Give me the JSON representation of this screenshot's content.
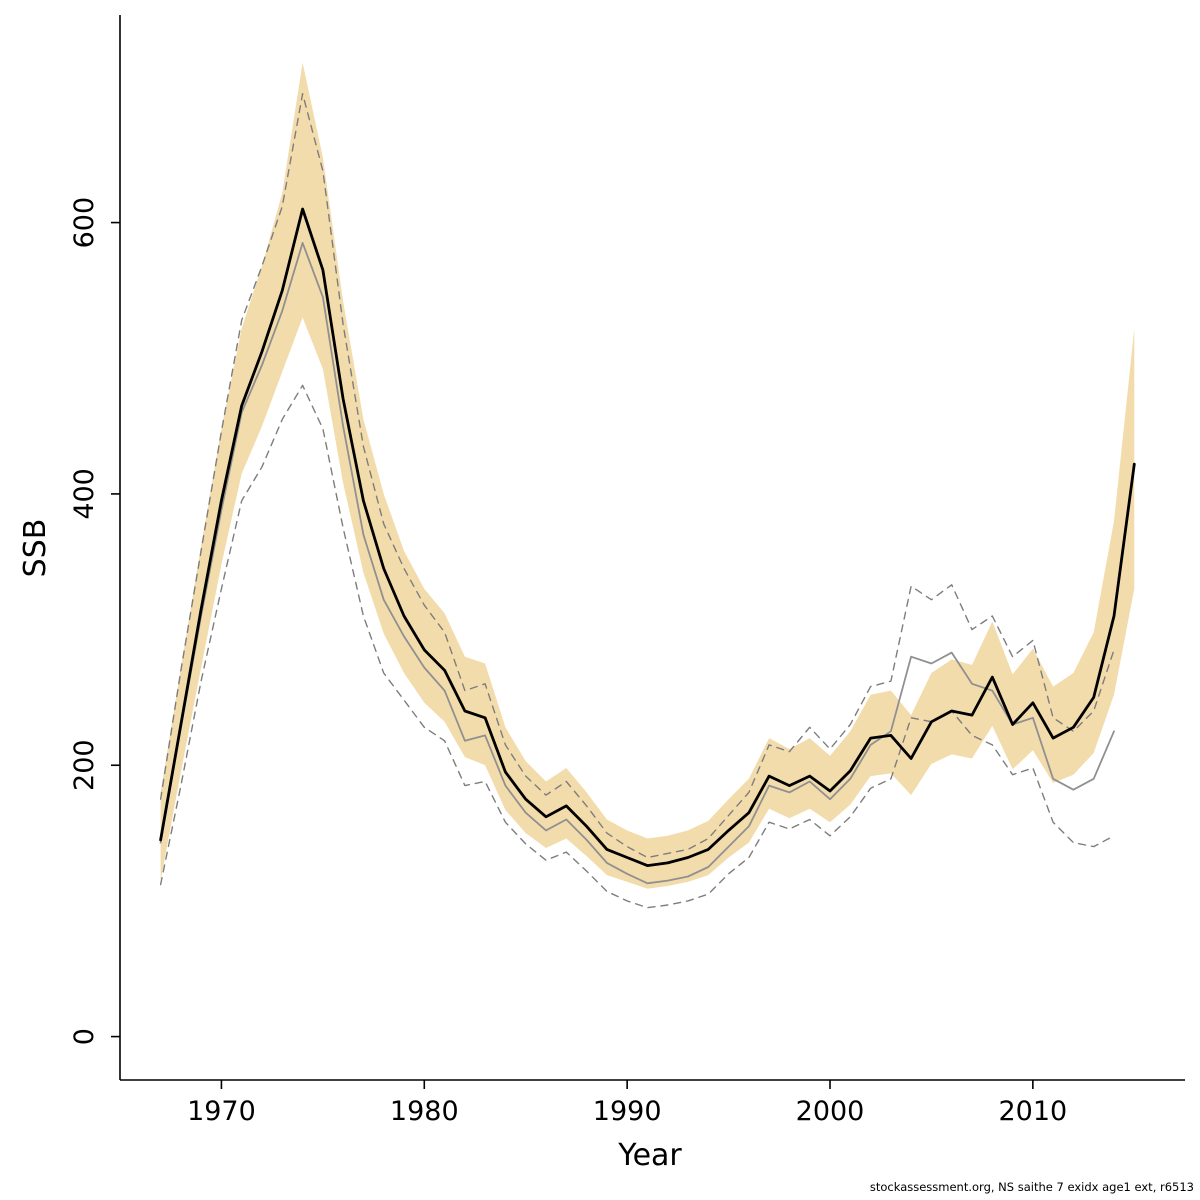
{
  "page": {
    "background": "#ffffff"
  },
  "footer": {
    "credit": "stockassessment.org, NS saithe 7 exidx age1 ext, r6513"
  },
  "chart_data": {
    "type": "line",
    "title": "",
    "xlabel": "Year",
    "ylabel": "SSB",
    "xlim": [
      1965,
      2017.5
    ],
    "ylim": [
      -32,
      753
    ],
    "x_ticks": [
      1970,
      1980,
      1990,
      2000,
      2010
    ],
    "y_ticks": [
      0,
      200,
      400,
      600
    ],
    "grid": false,
    "legend_position": "none",
    "colors": {
      "estimate_line": "#000000",
      "previous_line": "#909090",
      "previous_ci_dashed": "#7d7d7d",
      "confidence_band": "#f3dcab",
      "axis": "#000000"
    },
    "years": [
      1967,
      1968,
      1969,
      1970,
      1971,
      1972,
      1973,
      1974,
      1975,
      1976,
      1977,
      1978,
      1979,
      1980,
      1981,
      1982,
      1983,
      1984,
      1985,
      1986,
      1987,
      1988,
      1989,
      1990,
      1991,
      1992,
      1993,
      1994,
      1995,
      1996,
      1997,
      1998,
      1999,
      2000,
      2001,
      2002,
      2003,
      2004,
      2005,
      2006,
      2007,
      2008,
      2009,
      2010,
      2011,
      2012,
      2013,
      2014,
      2015
    ],
    "series": [
      {
        "name": "SSB estimate",
        "role": "line-black",
        "values": [
          145,
          230,
          315,
          395,
          465,
          505,
          550,
          610,
          565,
          470,
          395,
          345,
          310,
          285,
          270,
          240,
          235,
          195,
          175,
          162,
          170,
          155,
          138,
          132,
          126,
          128,
          132,
          138,
          152,
          165,
          192,
          185,
          192,
          181,
          196,
          220,
          222,
          205,
          232,
          240,
          237,
          265,
          230,
          246,
          220,
          228,
          250,
          310,
          422
        ]
      },
      {
        "name": "Confidence band lower",
        "role": "band-lower",
        "values": [
          115,
          195,
          272,
          348,
          415,
          450,
          490,
          530,
          492,
          408,
          342,
          297,
          268,
          246,
          232,
          206,
          200,
          167,
          150,
          139,
          146,
          133,
          119,
          114,
          109,
          111,
          114,
          119,
          132,
          143,
          168,
          161,
          168,
          158,
          171,
          192,
          194,
          178,
          201,
          208,
          205,
          229,
          197,
          211,
          187,
          193,
          209,
          252,
          330
        ]
      },
      {
        "name": "Confidence band upper",
        "role": "band-upper",
        "values": [
          180,
          272,
          362,
          448,
          522,
          568,
          622,
          718,
          648,
          542,
          455,
          400,
          358,
          330,
          312,
          280,
          275,
          228,
          203,
          188,
          198,
          180,
          160,
          152,
          146,
          148,
          152,
          159,
          175,
          190,
          220,
          212,
          220,
          207,
          225,
          252,
          255,
          237,
          268,
          278,
          274,
          306,
          267,
          286,
          258,
          268,
          298,
          380,
          522
        ]
      },
      {
        "name": "Previous assessment",
        "role": "line-gray",
        "values": [
          143,
          228,
          310,
          388,
          460,
          495,
          535,
          585,
          545,
          450,
          370,
          322,
          295,
          272,
          255,
          218,
          222,
          185,
          165,
          152,
          160,
          145,
          128,
          120,
          113,
          115,
          118,
          125,
          140,
          155,
          185,
          180,
          188,
          175,
          190,
          215,
          225,
          280,
          275,
          283,
          260,
          255,
          230,
          235,
          190,
          182,
          190,
          225,
          null
        ]
      },
      {
        "name": "Previous assessment lower CI",
        "role": "dashed-lower",
        "values": [
          112,
          185,
          262,
          330,
          395,
          420,
          455,
          480,
          448,
          375,
          310,
          268,
          248,
          228,
          218,
          185,
          188,
          158,
          142,
          130,
          136,
          122,
          107,
          100,
          95,
          97,
          100,
          105,
          120,
          132,
          158,
          153,
          160,
          148,
          162,
          183,
          190,
          235,
          232,
          240,
          222,
          215,
          193,
          198,
          158,
          143,
          140,
          148,
          null
        ]
      },
      {
        "name": "Previous assessment upper CI",
        "role": "dashed-upper",
        "values": [
          175,
          270,
          358,
          446,
          528,
          568,
          612,
          695,
          638,
          525,
          435,
          378,
          345,
          318,
          298,
          255,
          260,
          215,
          192,
          178,
          188,
          170,
          150,
          140,
          132,
          135,
          138,
          146,
          163,
          180,
          215,
          210,
          228,
          212,
          230,
          258,
          262,
          332,
          322,
          333,
          300,
          310,
          280,
          292,
          235,
          225,
          240,
          285,
          null
        ]
      }
    ]
  }
}
